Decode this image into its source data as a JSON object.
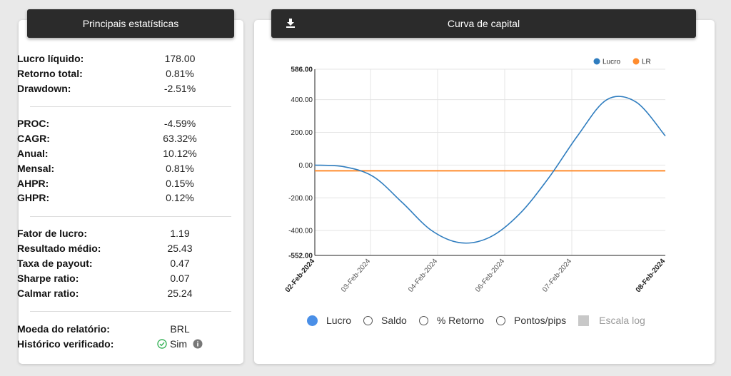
{
  "stats": {
    "title": "Principais estatísticas",
    "groups": [
      [
        {
          "label": "Lucro líquido:",
          "value": "178.00"
        },
        {
          "label": "Retorno total:",
          "value": "0.81%"
        },
        {
          "label": "Drawdown:",
          "value": "-2.51%"
        }
      ],
      [
        {
          "label": "PROC:",
          "value": "-4.59%"
        },
        {
          "label": "CAGR:",
          "value": "63.32%"
        },
        {
          "label": "Anual:",
          "value": "10.12%"
        },
        {
          "label": "Mensal:",
          "value": "0.81%"
        },
        {
          "label": "AHPR:",
          "value": "0.15%"
        },
        {
          "label": "GHPR:",
          "value": "0.12%"
        }
      ],
      [
        {
          "label": "Fator de lucro:",
          "value": "1.19"
        },
        {
          "label": "Resultado médio:",
          "value": "25.43"
        },
        {
          "label": "Taxa de payout:",
          "value": "0.47"
        },
        {
          "label": "Sharpe ratio:",
          "value": "0.07"
        },
        {
          "label": "Calmar ratio:",
          "value": "25.24"
        }
      ]
    ],
    "currency_label": "Moeda do relatório:",
    "currency_value": "BRL",
    "verified_label": "Histórico verificado:",
    "verified_value": "Sim"
  },
  "chart_panel": {
    "title": "Curva de capital",
    "download_icon": "download-icon",
    "options": [
      {
        "label": "Lucro",
        "selected": true
      },
      {
        "label": "Saldo",
        "selected": false
      },
      {
        "label": "% Retorno",
        "selected": false
      },
      {
        "label": "Pontos/pips",
        "selected": false
      }
    ],
    "log_scale_label": "Escala log"
  },
  "chart_data": {
    "type": "line",
    "legend": [
      "Lucro",
      "LR"
    ],
    "legend_position": "top-right",
    "colors": {
      "Lucro": "#2f7dbf",
      "LR": "#ff8c2e"
    },
    "ylim": [
      -552.0,
      586.0
    ],
    "yticks": [
      "586.00",
      "400.00",
      "200.00",
      "0.00",
      "-200.00",
      "-400.00",
      "-552.00"
    ],
    "ytick_values": [
      586,
      400,
      200,
      0,
      -200,
      -400,
      -552
    ],
    "xticks": [
      "02-Feb-2024",
      "03-Feb-2024",
      "04-Feb-2024",
      "06-Feb-2024",
      "07-Feb-2024",
      "08-Feb-2024"
    ],
    "grid": true,
    "series": [
      {
        "name": "Lucro",
        "values": [
          0,
          -10,
          -70,
          -230,
          -400,
          -475,
          -440,
          -300,
          -80,
          180,
          400,
          385,
          178
        ]
      },
      {
        "name": "LR",
        "values": [
          -35,
          -35
        ]
      }
    ]
  }
}
